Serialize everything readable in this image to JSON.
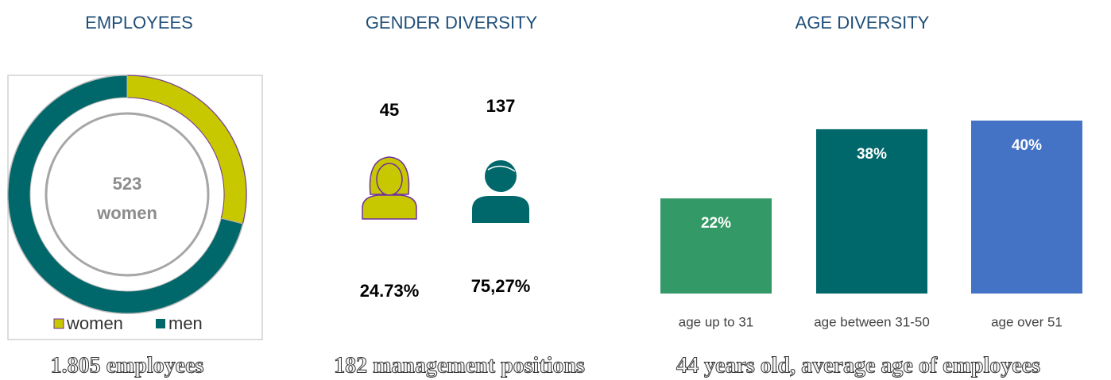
{
  "chart_data": [
    {
      "type": "pie",
      "title": "EMPLOYEES",
      "caption": "1.805 employees",
      "center_label": "523",
      "center_sublabel": "women",
      "series": [
        {
          "name": "women",
          "color": "#c8c800",
          "value": 523
        },
        {
          "name": "men",
          "color": "#00676a",
          "value": 1282
        }
      ],
      "legend": "bottom"
    },
    {
      "type": "pictogram",
      "title": "GENDER DIVERSITY",
      "caption": "182 management positions",
      "values": [
        45,
        137
      ],
      "colors": [
        "#c8c800",
        "#00676a"
      ],
      "shares": [
        24.73,
        75.27
      ],
      "share_labels": [
        "24.73%",
        "75,27%"
      ]
    },
    {
      "type": "bar",
      "title": "AGE DIVERSITY",
      "caption": "44 years old, average age of employees",
      "categories": [
        "age up to  31",
        "age between 31-50",
        "age over 51"
      ],
      "values": [
        22,
        38,
        40
      ],
      "value_labels": [
        "22%",
        "38%",
        "40%"
      ],
      "colors": [
        "#339966",
        "#00676a",
        "#4472c4"
      ]
    }
  ]
}
